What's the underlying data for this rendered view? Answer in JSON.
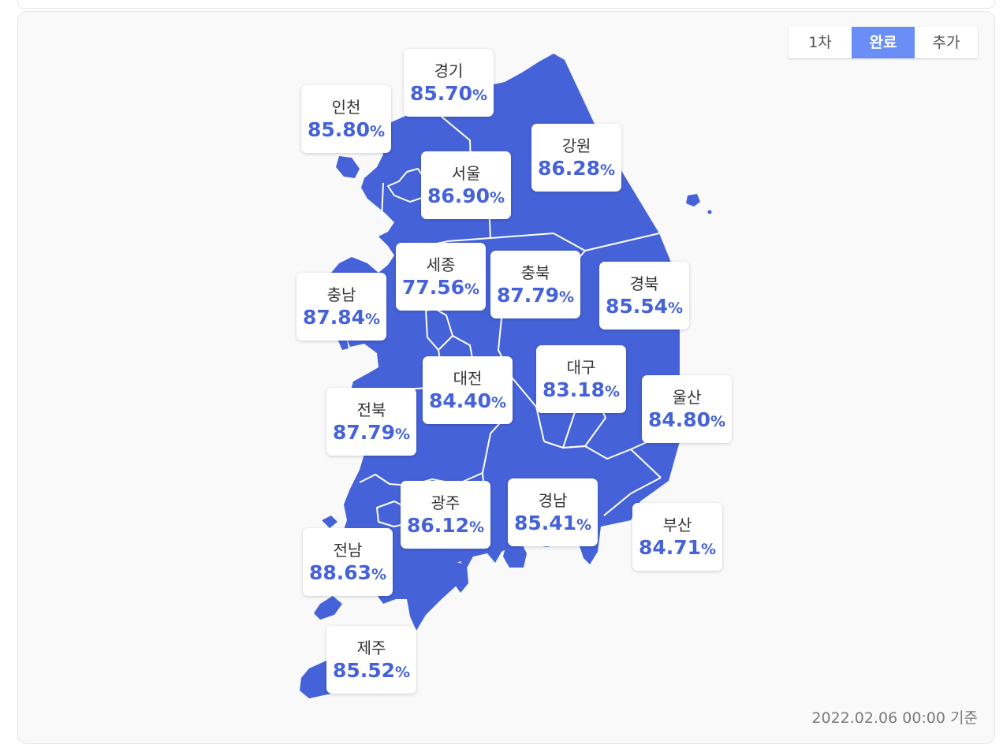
{
  "tabs": [
    {
      "label": "1차",
      "active": false
    },
    {
      "label": "완료",
      "active": true
    },
    {
      "label": "추가",
      "active": false
    }
  ],
  "unit": "%",
  "regions": [
    {
      "name": "경기",
      "value": "85.70"
    },
    {
      "name": "인천",
      "value": "85.80"
    },
    {
      "name": "강원",
      "value": "86.28"
    },
    {
      "name": "서울",
      "value": "86.90"
    },
    {
      "name": "세종",
      "value": "77.56"
    },
    {
      "name": "충북",
      "value": "87.79"
    },
    {
      "name": "경북",
      "value": "85.54"
    },
    {
      "name": "충남",
      "value": "87.84"
    },
    {
      "name": "대구",
      "value": "83.18"
    },
    {
      "name": "대전",
      "value": "84.40"
    },
    {
      "name": "울산",
      "value": "84.80"
    },
    {
      "name": "전북",
      "value": "87.79"
    },
    {
      "name": "광주",
      "value": "86.12"
    },
    {
      "name": "경남",
      "value": "85.41"
    },
    {
      "name": "부산",
      "value": "84.71"
    },
    {
      "name": "전남",
      "value": "88.63"
    },
    {
      "name": "제주",
      "value": "85.52"
    }
  ],
  "timestamp": "2022.02.06 00:00 기준",
  "colors": {
    "map_fill": "#4562d8",
    "active_tab": "#6a8ef5",
    "value_text": "#4562d8"
  }
}
